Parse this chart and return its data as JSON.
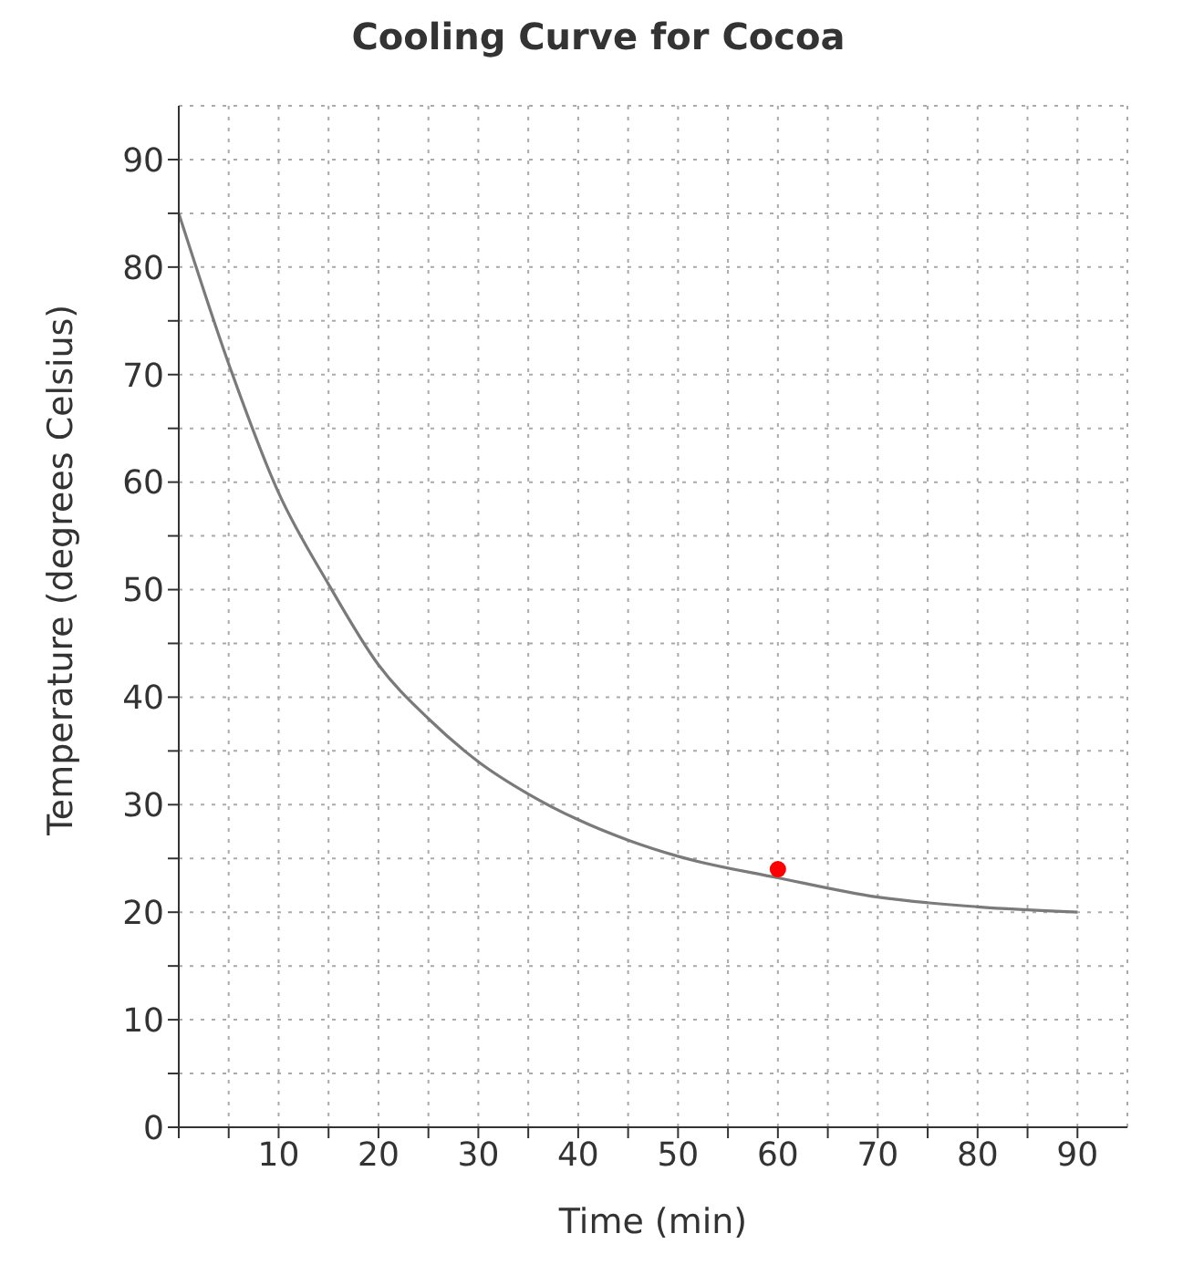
{
  "chart_data": {
    "type": "line",
    "title": "Cooling Curve for Cocoa",
    "xlabel": "Time (min)",
    "ylabel": "Temperature (degrees Celsius)",
    "series": [
      {
        "color": "#7a7a7a",
        "x": [
          0,
          5,
          10,
          15,
          20,
          25,
          30,
          35,
          40,
          45,
          50,
          60,
          70,
          80,
          90
        ],
        "values": [
          85,
          71,
          59,
          50.5,
          43,
          38,
          34,
          31,
          28.6,
          26.7,
          25.2,
          23.2,
          21.4,
          20.5,
          20
        ],
        "marker": "none"
      },
      {
        "type": "scatter",
        "color": "#ff0000",
        "x": [
          60
        ],
        "values": [
          24
        ],
        "marker": "circle"
      }
    ],
    "xlim": [
      0,
      95
    ],
    "ylim": [
      0,
      95
    ],
    "xticks": [
      {
        "value": 0,
        "label": null
      },
      {
        "value": 5,
        "label": null
      },
      10,
      {
        "value": 15,
        "label": null
      },
      20,
      {
        "value": 25,
        "label": null
      },
      30,
      {
        "value": 35,
        "label": null
      },
      40,
      {
        "value": 45,
        "label": null
      },
      50,
      {
        "value": 55,
        "label": null
      },
      60,
      {
        "value": 65,
        "label": null
      },
      70,
      {
        "value": 75,
        "label": null
      },
      80,
      {
        "value": 85,
        "label": null
      },
      90
    ],
    "yticks": [
      0,
      {
        "value": 5,
        "label": null
      },
      10,
      {
        "value": 15,
        "label": null
      },
      20,
      {
        "value": 25,
        "label": null
      },
      30,
      {
        "value": 35,
        "label": null
      },
      40,
      {
        "value": 45,
        "label": null
      },
      50,
      {
        "value": 55,
        "label": null
      },
      60,
      {
        "value": 65,
        "label": null
      },
      70,
      {
        "value": 75,
        "label": null
      },
      80,
      {
        "value": 85,
        "label": null
      },
      90
    ],
    "grid": true,
    "legend": false
  }
}
